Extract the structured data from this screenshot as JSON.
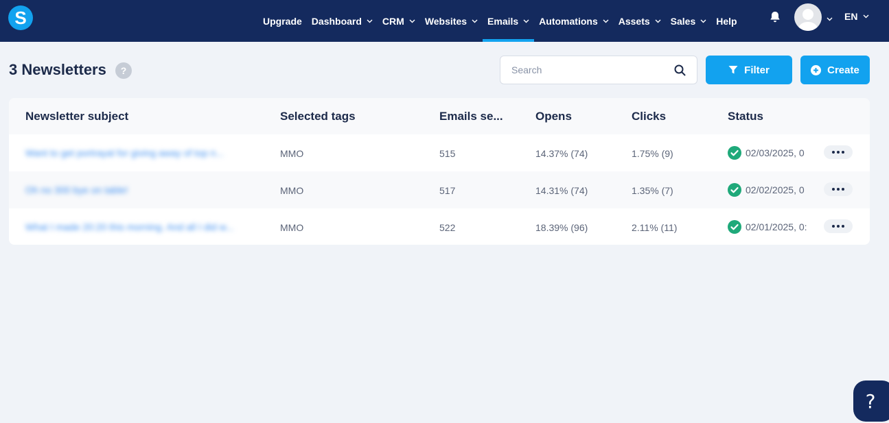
{
  "colors": {
    "nav_bg": "#142a5e",
    "accent": "#12a2ef",
    "page_bg": "#f0f3f8",
    "success": "#1fa97a"
  },
  "topbar": {
    "logo_letter": "S",
    "nav": [
      {
        "label": "Upgrade",
        "dropdown": false,
        "active": false
      },
      {
        "label": "Dashboard",
        "dropdown": true,
        "active": false
      },
      {
        "label": "CRM",
        "dropdown": true,
        "active": false
      },
      {
        "label": "Websites",
        "dropdown": true,
        "active": false
      },
      {
        "label": "Emails",
        "dropdown": true,
        "active": true
      },
      {
        "label": "Automations",
        "dropdown": true,
        "active": false
      },
      {
        "label": "Assets",
        "dropdown": true,
        "active": false
      },
      {
        "label": "Sales",
        "dropdown": true,
        "active": false
      },
      {
        "label": "Help",
        "dropdown": false,
        "active": false
      }
    ],
    "language": "EN",
    "icons": [
      "bell-icon",
      "avatar",
      "chevron-down-icon"
    ]
  },
  "header": {
    "title": "3 Newsletters",
    "help_glyph": "?",
    "search_placeholder": "Search",
    "filter_label": "Filter",
    "create_label": "Create"
  },
  "table": {
    "columns": [
      "Newsletter subject",
      "Selected tags",
      "Emails se...",
      "Opens",
      "Clicks",
      "Status"
    ],
    "rows": [
      {
        "subject": "Want to get portrayal for giving away of top n...",
        "tags": "MMO",
        "emails": "515",
        "opens": "14.37% (74)",
        "clicks": "1.75% (9)",
        "status": "02/03/2025, 0"
      },
      {
        "subject": "Oh no 300 bye on table!",
        "tags": "MMO",
        "emails": "517",
        "opens": "14.31% (74)",
        "clicks": "1.35% (7)",
        "status": "02/02/2025, 0"
      },
      {
        "subject": "What I made 20:20 this morning. And all I did w...",
        "tags": "MMO",
        "emails": "522",
        "opens": "18.39% (96)",
        "clicks": "2.11% (11)",
        "status": "02/01/2025, 0:"
      }
    ]
  },
  "fab": {
    "glyph": "?"
  }
}
